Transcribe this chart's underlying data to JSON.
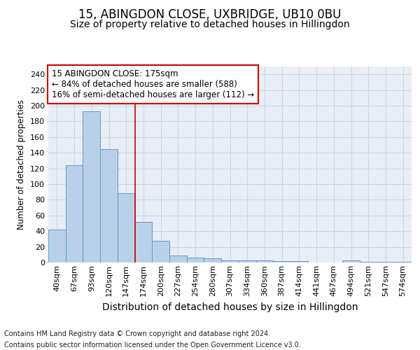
{
  "title": "15, ABINGDON CLOSE, UXBRIDGE, UB10 0BU",
  "subtitle": "Size of property relative to detached houses in Hillingdon",
  "xlabel": "Distribution of detached houses by size in Hillingdon",
  "ylabel": "Number of detached properties",
  "footer_line1": "Contains HM Land Registry data © Crown copyright and database right 2024.",
  "footer_line2": "Contains public sector information licensed under the Open Government Licence v3.0.",
  "categories": [
    "40sqm",
    "67sqm",
    "93sqm",
    "120sqm",
    "147sqm",
    "174sqm",
    "200sqm",
    "227sqm",
    "254sqm",
    "280sqm",
    "307sqm",
    "334sqm",
    "360sqm",
    "387sqm",
    "414sqm",
    "441sqm",
    "467sqm",
    "494sqm",
    "521sqm",
    "547sqm",
    "574sqm"
  ],
  "values": [
    42,
    124,
    193,
    145,
    88,
    52,
    28,
    9,
    6,
    5,
    3,
    3,
    3,
    2,
    2,
    0,
    0,
    3,
    1,
    1,
    1
  ],
  "bar_color": "#b8d0e8",
  "bar_edge_color": "#6699cc",
  "grid_color": "#c8d4e4",
  "background_color": "#e8eef6",
  "vline_x_idx": 5,
  "vline_color": "#cc0000",
  "annotation_line1": "15 ABINGDON CLOSE: 175sqm",
  "annotation_line2": "← 84% of detached houses are smaller (588)",
  "annotation_line3": "16% of semi-detached houses are larger (112) →",
  "annotation_box_color": "#ffffff",
  "annotation_box_edge_color": "#cc0000",
  "ylim": [
    0,
    250
  ],
  "yticks": [
    0,
    20,
    40,
    60,
    80,
    100,
    120,
    140,
    160,
    180,
    200,
    220,
    240
  ],
  "title_fontsize": 12,
  "subtitle_fontsize": 10,
  "xlabel_fontsize": 10,
  "ylabel_fontsize": 8.5,
  "tick_fontsize": 8,
  "annotation_fontsize": 8.5,
  "footer_fontsize": 7
}
